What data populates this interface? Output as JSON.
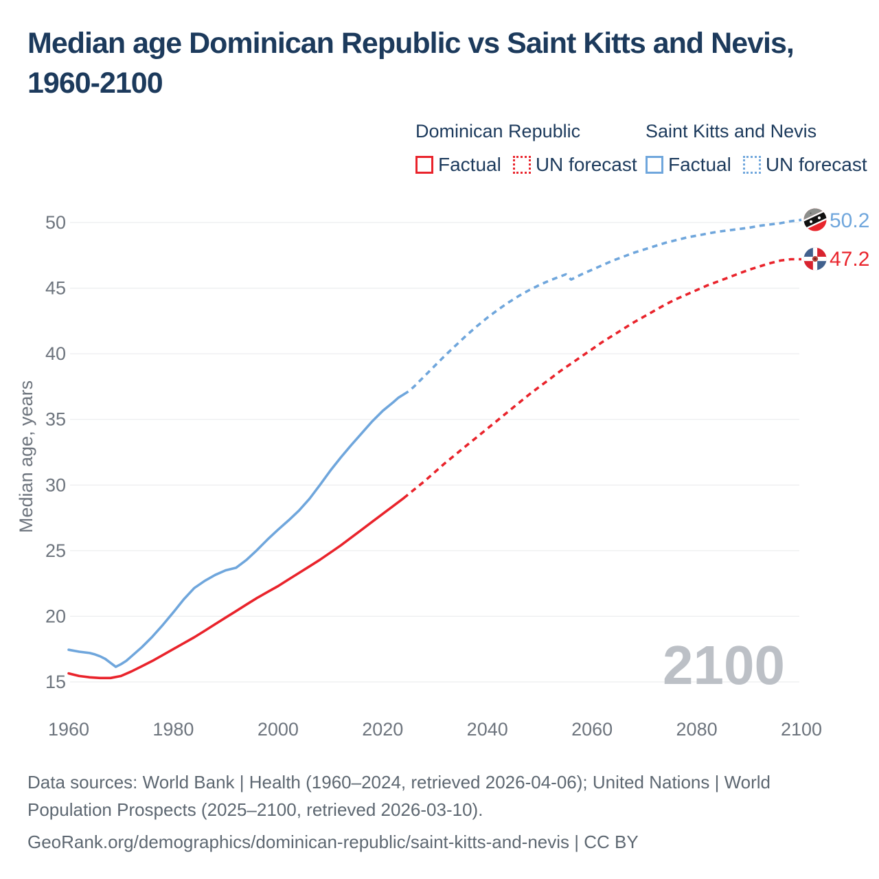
{
  "title": {
    "line1": "Median age Dominican Republic vs Saint Kitts and Nevis,",
    "line2": "1960-2100"
  },
  "accent_color": "#1c3a5c",
  "legend": {
    "groups": [
      {
        "name": "Dominican Republic",
        "color": "#e9232b",
        "items": [
          {
            "label": "Factual",
            "style": "solid"
          },
          {
            "label": "UN forecast",
            "style": "dotted"
          }
        ]
      },
      {
        "name": "Saint Kitts and Nevis",
        "color": "#6fa6dc",
        "items": [
          {
            "label": "Factual",
            "style": "solid"
          },
          {
            "label": "UN forecast",
            "style": "dotted"
          }
        ]
      }
    ]
  },
  "chart_data": {
    "type": "line",
    "title": "Median age Dominican Republic vs Saint Kitts and Nevis, 1960-2100",
    "xlabel": "",
    "ylabel": "Median age, years",
    "watermark": "2100",
    "xlim": [
      1960,
      2100
    ],
    "ylim": [
      13,
      52
    ],
    "x_ticks": [
      1960,
      1980,
      2000,
      2020,
      2040,
      2060,
      2080,
      2100
    ],
    "y_ticks": [
      15,
      20,
      25,
      30,
      35,
      40,
      45,
      50
    ],
    "grid": "horizontal-only",
    "legend_position": "top-right",
    "forecast_split_year": 2024,
    "series": [
      {
        "name": "Dominican Republic",
        "color": "#e9232b",
        "end_label": "47.2",
        "factual": [
          [
            1960,
            15.65
          ],
          [
            1962,
            15.45
          ],
          [
            1964,
            15.35
          ],
          [
            1966,
            15.3
          ],
          [
            1968,
            15.3
          ],
          [
            1970,
            15.45
          ],
          [
            1972,
            15.8
          ],
          [
            1974,
            16.2
          ],
          [
            1976,
            16.6
          ],
          [
            1978,
            17.05
          ],
          [
            1980,
            17.5
          ],
          [
            1982,
            17.95
          ],
          [
            1984,
            18.4
          ],
          [
            1986,
            18.9
          ],
          [
            1988,
            19.4
          ],
          [
            1990,
            19.9
          ],
          [
            1992,
            20.4
          ],
          [
            1994,
            20.9
          ],
          [
            1996,
            21.4
          ],
          [
            1998,
            21.85
          ],
          [
            2000,
            22.3
          ],
          [
            2002,
            22.8
          ],
          [
            2004,
            23.3
          ],
          [
            2006,
            23.8
          ],
          [
            2008,
            24.3
          ],
          [
            2010,
            24.85
          ],
          [
            2012,
            25.4
          ],
          [
            2014,
            26.0
          ],
          [
            2016,
            26.6
          ],
          [
            2018,
            27.2
          ],
          [
            2020,
            27.8
          ],
          [
            2022,
            28.4
          ],
          [
            2024,
            29.0
          ]
        ],
        "forecast": [
          [
            2024,
            29.0
          ],
          [
            2026,
            29.65
          ],
          [
            2028,
            30.3
          ],
          [
            2030,
            31.0
          ],
          [
            2032,
            31.7
          ],
          [
            2034,
            32.35
          ],
          [
            2036,
            33.0
          ],
          [
            2038,
            33.65
          ],
          [
            2040,
            34.3
          ],
          [
            2042,
            34.95
          ],
          [
            2044,
            35.6
          ],
          [
            2046,
            36.25
          ],
          [
            2048,
            36.9
          ],
          [
            2050,
            37.5
          ],
          [
            2052,
            38.1
          ],
          [
            2054,
            38.7
          ],
          [
            2056,
            39.25
          ],
          [
            2058,
            39.8
          ],
          [
            2060,
            40.35
          ],
          [
            2062,
            40.9
          ],
          [
            2064,
            41.4
          ],
          [
            2066,
            41.9
          ],
          [
            2068,
            42.4
          ],
          [
            2070,
            42.85
          ],
          [
            2072,
            43.3
          ],
          [
            2074,
            43.75
          ],
          [
            2076,
            44.15
          ],
          [
            2078,
            44.5
          ],
          [
            2080,
            44.85
          ],
          [
            2082,
            45.2
          ],
          [
            2084,
            45.5
          ],
          [
            2086,
            45.8
          ],
          [
            2088,
            46.1
          ],
          [
            2090,
            46.4
          ],
          [
            2092,
            46.65
          ],
          [
            2094,
            46.9
          ],
          [
            2096,
            47.1
          ],
          [
            2098,
            47.2
          ],
          [
            2100,
            47.2
          ]
        ]
      },
      {
        "name": "Saint Kitts and Nevis",
        "color": "#6fa6dc",
        "end_label": "50.2",
        "factual": [
          [
            1960,
            17.45
          ],
          [
            1962,
            17.3
          ],
          [
            1964,
            17.2
          ],
          [
            1965,
            17.1
          ],
          [
            1966,
            16.95
          ],
          [
            1967,
            16.75
          ],
          [
            1968,
            16.45
          ],
          [
            1969,
            16.15
          ],
          [
            1970,
            16.35
          ],
          [
            1971,
            16.6
          ],
          [
            1972,
            16.95
          ],
          [
            1974,
            17.65
          ],
          [
            1976,
            18.45
          ],
          [
            1978,
            19.35
          ],
          [
            1980,
            20.3
          ],
          [
            1982,
            21.3
          ],
          [
            1984,
            22.15
          ],
          [
            1986,
            22.7
          ],
          [
            1988,
            23.15
          ],
          [
            1990,
            23.5
          ],
          [
            1992,
            23.7
          ],
          [
            1994,
            24.3
          ],
          [
            1996,
            25.05
          ],
          [
            1998,
            25.85
          ],
          [
            2000,
            26.6
          ],
          [
            2002,
            27.3
          ],
          [
            2004,
            28.05
          ],
          [
            2006,
            28.95
          ],
          [
            2008,
            30.0
          ],
          [
            2010,
            31.1
          ],
          [
            2012,
            32.1
          ],
          [
            2014,
            33.05
          ],
          [
            2016,
            33.95
          ],
          [
            2018,
            34.85
          ],
          [
            2020,
            35.65
          ],
          [
            2022,
            36.3
          ],
          [
            2023,
            36.65
          ],
          [
            2024,
            36.9
          ]
        ],
        "forecast": [
          [
            2024,
            36.9
          ],
          [
            2025,
            37.15
          ],
          [
            2026,
            37.5
          ],
          [
            2028,
            38.3
          ],
          [
            2030,
            39.1
          ],
          [
            2032,
            39.9
          ],
          [
            2034,
            40.65
          ],
          [
            2036,
            41.4
          ],
          [
            2038,
            42.1
          ],
          [
            2040,
            42.75
          ],
          [
            2042,
            43.35
          ],
          [
            2044,
            43.9
          ],
          [
            2046,
            44.4
          ],
          [
            2048,
            44.85
          ],
          [
            2050,
            45.25
          ],
          [
            2052,
            45.6
          ],
          [
            2054,
            45.9
          ],
          [
            2055,
            46.05
          ],
          [
            2056,
            45.65
          ],
          [
            2058,
            46.05
          ],
          [
            2060,
            46.4
          ],
          [
            2062,
            46.75
          ],
          [
            2064,
            47.1
          ],
          [
            2066,
            47.4
          ],
          [
            2068,
            47.7
          ],
          [
            2070,
            47.95
          ],
          [
            2072,
            48.2
          ],
          [
            2074,
            48.45
          ],
          [
            2076,
            48.65
          ],
          [
            2078,
            48.85
          ],
          [
            2080,
            49.0
          ],
          [
            2082,
            49.15
          ],
          [
            2084,
            49.3
          ],
          [
            2086,
            49.4
          ],
          [
            2088,
            49.5
          ],
          [
            2090,
            49.6
          ],
          [
            2092,
            49.75
          ],
          [
            2094,
            49.85
          ],
          [
            2096,
            49.95
          ],
          [
            2098,
            50.1
          ],
          [
            2100,
            50.2
          ]
        ]
      }
    ]
  },
  "footer": {
    "line1": "Data sources: World Bank | Health (1960–2024, retrieved 2026-04-06); United Nations | World",
    "line2": "Population Prospects (2025–2100, retrieved 2026-03-10).",
    "line3": "GeoRank.org/demographics/dominican-republic/saint-kitts-and-nevis | CC BY"
  }
}
